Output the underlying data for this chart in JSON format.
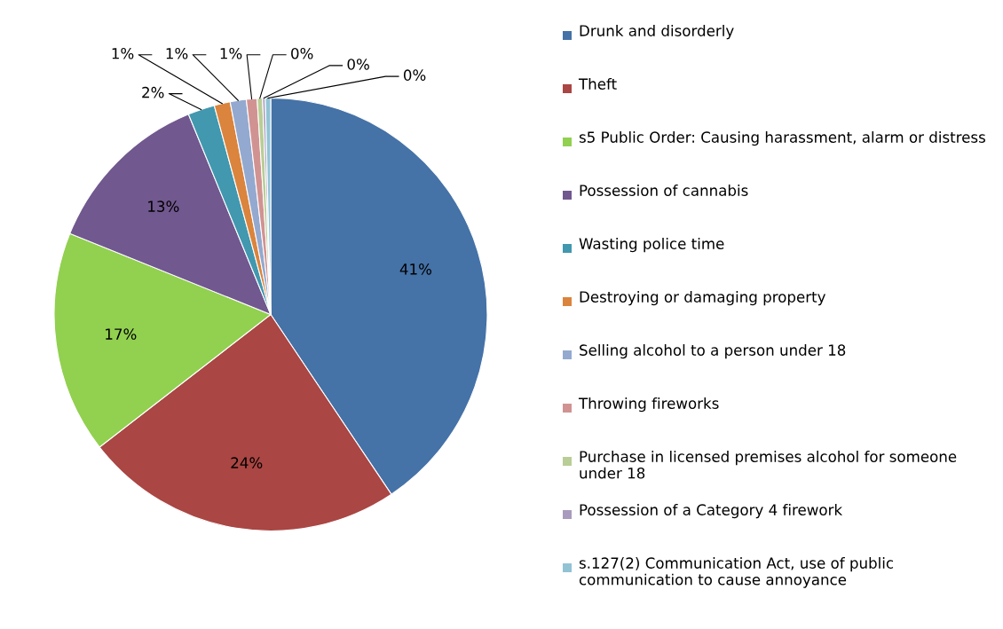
{
  "chart_data": {
    "type": "pie",
    "categories": [
      "Drunk and disorderly",
      "Theft",
      "s5 Public Order: Causing harassment, alarm or distress",
      "Possession of cannabis",
      "Wasting police time",
      "Destroying or damaging property",
      "Selling alcohol to a person under 18",
      "Throwing fireworks",
      "Purchase in licensed premises alcohol for someone under 18",
      "Possession of a Category 4 firework",
      "s.127(2) Communication Act, use of public communication to cause annoyance"
    ],
    "values": [
      40.6,
      23.9,
      16.6,
      12.7,
      2.0,
      1.2,
      1.2,
      0.8,
      0.4,
      0.2,
      0.4
    ],
    "value_labels": [
      "41%",
      "24%",
      "17%",
      "13%",
      "2%",
      "1%",
      "1%",
      "1%",
      "0%",
      "0%",
      "0%"
    ],
    "colors": [
      "#4572a7",
      "#aa4643",
      "#92d050",
      "#71588f",
      "#4198af",
      "#db843d",
      "#93a9cf",
      "#d19392",
      "#b9cd96",
      "#a99bbd",
      "#91c3d5"
    ],
    "legend": "right"
  }
}
